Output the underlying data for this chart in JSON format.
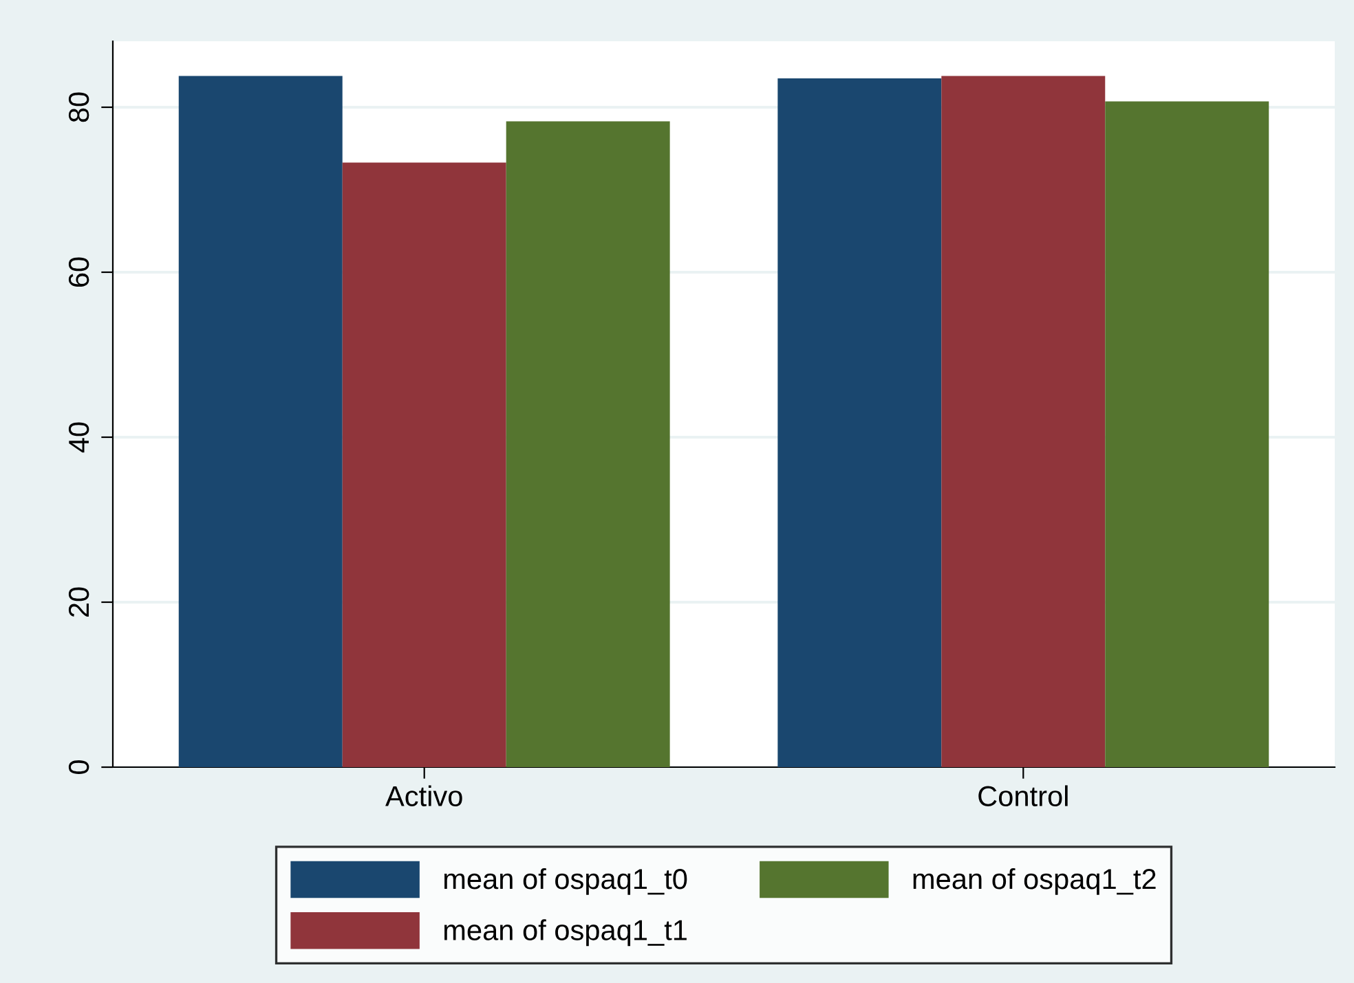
{
  "chart_data": {
    "type": "bar",
    "categories": [
      "Activo",
      "Control"
    ],
    "series": [
      {
        "name": "mean of ospaq1_t0",
        "color": "#1a476f",
        "values": [
          83.8,
          83.5
        ]
      },
      {
        "name": "mean of ospaq1_t1",
        "color": "#90353b",
        "values": [
          73.3,
          83.8
        ]
      },
      {
        "name": "mean of ospaq1_t2",
        "color": "#55752f",
        "values": [
          78.3,
          80.7
        ]
      }
    ],
    "ylim": [
      0,
      88
    ],
    "yticks": [
      0,
      20,
      40,
      60,
      80
    ],
    "grid": "y",
    "legend": "bottom"
  }
}
